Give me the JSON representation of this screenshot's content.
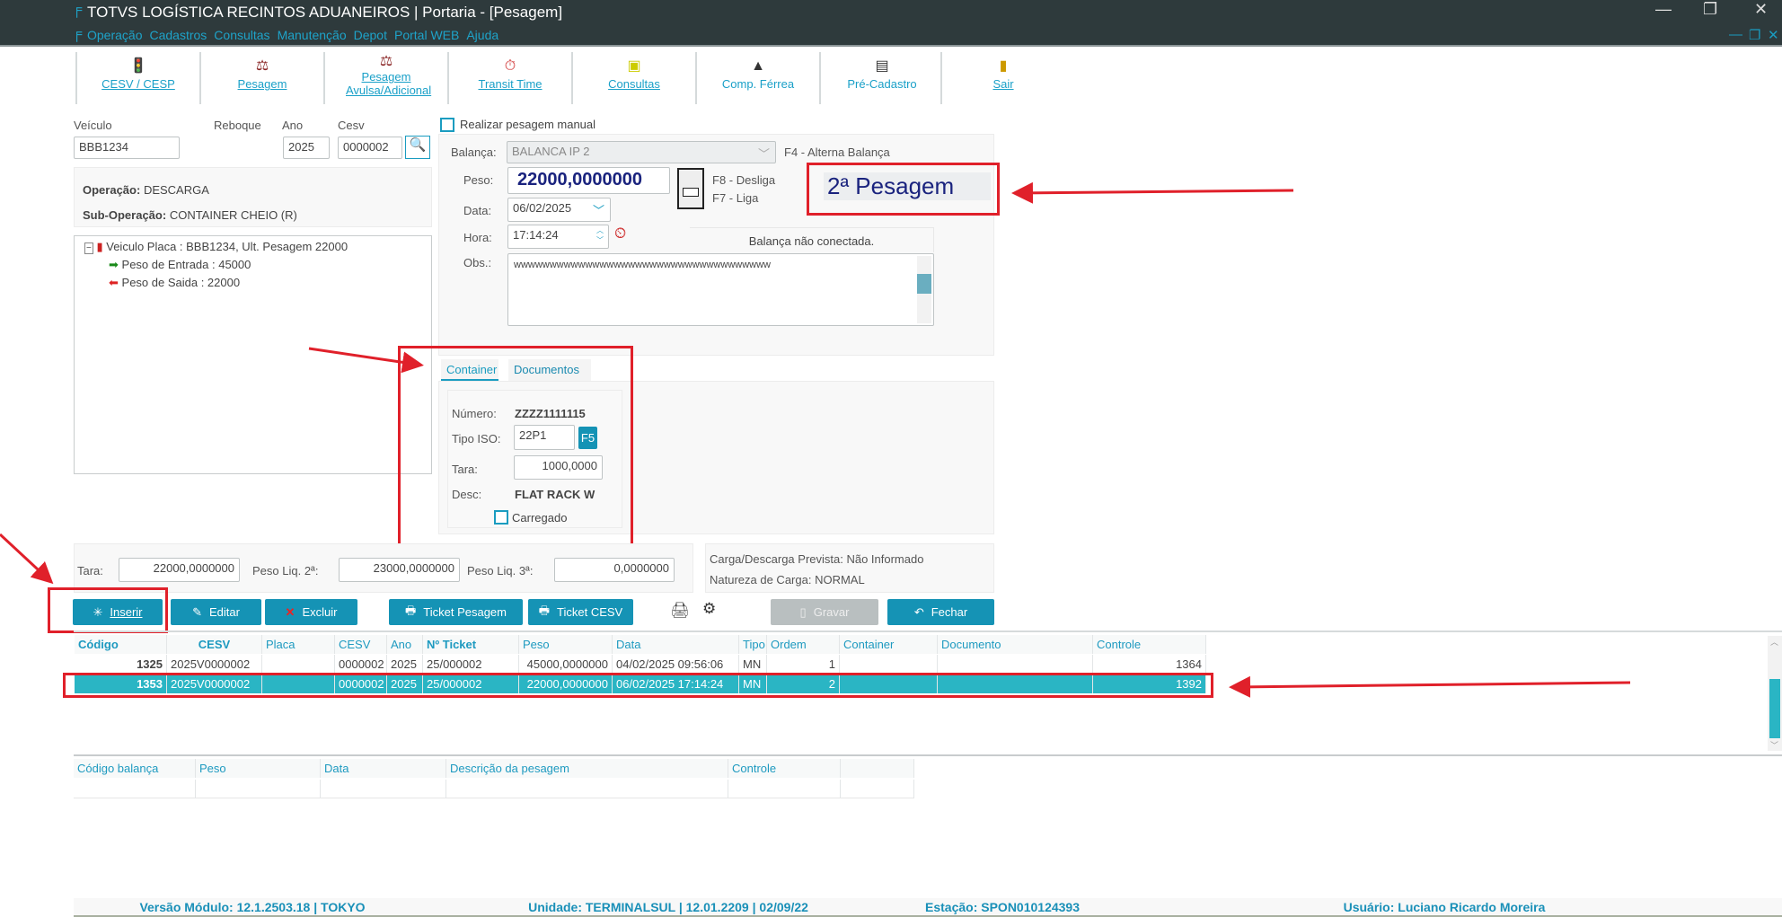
{
  "window": {
    "title": "TOTVS LOGÍSTICA RECINTOS ADUANEIROS | Portaria - [Pesagem]",
    "controls": [
      "minimize",
      "restore",
      "close"
    ]
  },
  "menu": [
    "Operação",
    "Cadastros",
    "Consultas",
    "Manutenção",
    "Depot",
    "Portal WEB",
    "Ajuda"
  ],
  "toolbar": [
    {
      "label": "CESV / CESP",
      "icon": "traffic-light-icon"
    },
    {
      "label": "Pesagem",
      "icon": "scale-icon"
    },
    {
      "label": "Pesagem Avulsa/Adicional",
      "icon": "scale-extra-icon"
    },
    {
      "label": "Transit Time",
      "icon": "clock-icon"
    },
    {
      "label": "Consultas",
      "icon": "consult-icon"
    },
    {
      "label": "Comp. Férrea",
      "icon": "train-icon"
    },
    {
      "label": "Pré-Cadastro",
      "icon": "register-icon"
    },
    {
      "label": "Sair",
      "icon": "exit-door-icon"
    }
  ],
  "vehicle": {
    "veiculo_label": "Veículo",
    "veiculo": "BBB1234",
    "reboque_label": "Reboque",
    "ano_label": "Ano",
    "ano": "2025",
    "cesv_label": "Cesv",
    "cesv": "0000002"
  },
  "operation": {
    "operacao_label": "Operação:",
    "operacao": "DESCARGA",
    "sub_label": "Sub-Operação:",
    "sub": "CONTAINER CHEIO (R)"
  },
  "tree": {
    "root": "Veiculo Placa : BBB1234, Ult. Pesagem 22000",
    "children": [
      "Peso de Entrada : 45000",
      "Peso de Saida : 22000"
    ]
  },
  "weighing": {
    "manual_label": "Realizar pesagem manual",
    "manual_checked": false,
    "balanca_label": "Balança:",
    "balanca": "BALANCA IP 2",
    "f4": "F4 - Alterna Balança",
    "peso_label": "Peso:",
    "peso": "22000,0000000",
    "f8": "F8 - Desliga",
    "f7": "F7 - Liga",
    "data_label": "Data:",
    "data": "06/02/2025",
    "hora_label": "Hora:",
    "hora": "17:14:24",
    "status": "Balança não conectada.",
    "obs_label": "Obs.:",
    "obs": "wwwwwwwwwwwwwwwwwwwwwwwwwwwwwwwwwwww",
    "pesagem_badge": "2ª Pesagem"
  },
  "tabs": {
    "items": [
      "Container",
      "Documentos"
    ],
    "active": "Container"
  },
  "container": {
    "numero_label": "Número:",
    "numero": "ZZZZ1111115",
    "tipo_label": "Tipo ISO:",
    "tipo": "22P1",
    "f5": "F5",
    "tara_label": "Tara:",
    "tara": "1000,0000",
    "desc_label": "Desc:",
    "desc": "FLAT RACK W",
    "carregado_label": "Carregado",
    "carregado": false
  },
  "totals": {
    "tara_label": "Tara:",
    "tara": "22000,0000000",
    "liq2_label": "Peso Liq. 2ª:",
    "liq2": "23000,0000000",
    "liq3_label": "Peso Liq. 3ª:",
    "liq3": "0,0000000"
  },
  "info": {
    "line1": "Carga/Descarga Prevista: Não Informado",
    "line2": "Natureza de Carga: NORMAL"
  },
  "actions": {
    "inserir": "Inserir",
    "editar": "Editar",
    "excluir": "Excluir",
    "ticket_pesagem": "Ticket Pesagem",
    "ticket_cesv": "Ticket CESV",
    "gravar": "Gravar",
    "fechar": "Fechar"
  },
  "grid": {
    "columns": [
      "Código",
      "CESV",
      "Placa",
      "CESV",
      "Ano",
      "Nº Ticket",
      "Peso",
      "Data",
      "Tipo",
      "Ordem",
      "Container",
      "Documento",
      "Controle"
    ],
    "rows": [
      [
        "1325",
        "2025V0000002",
        "",
        "0000002",
        "2025",
        "25/000002",
        "45000,0000000",
        "04/02/2025 09:56:06",
        "MN",
        "1",
        "",
        "",
        "1364"
      ],
      [
        "1353",
        "2025V0000002",
        "",
        "0000002",
        "2025",
        "25/000002",
        "22000,0000000",
        "06/02/2025 17:14:24",
        "MN",
        "2",
        "",
        "",
        "1392"
      ]
    ],
    "selected_row": 1
  },
  "grid2": {
    "columns": [
      "Código balança",
      "Peso",
      "Data",
      "Descrição da pesagem",
      "Controle",
      ""
    ]
  },
  "status": {
    "versao": "Versão Módulo:  12.1.2503.18  |  TOKYO",
    "unidade": "Unidade: TERMINALSUL | 12.01.2209 | 02/09/22",
    "estacao": "Estação: SPON010124393",
    "usuario": "Usuário: Luciano Ricardo Moreira"
  },
  "colors": {
    "accent": "#1593b5",
    "selected_row": "#2ab5c4",
    "annotation": "#e0202a",
    "titlebar": "#2e3a3c"
  }
}
